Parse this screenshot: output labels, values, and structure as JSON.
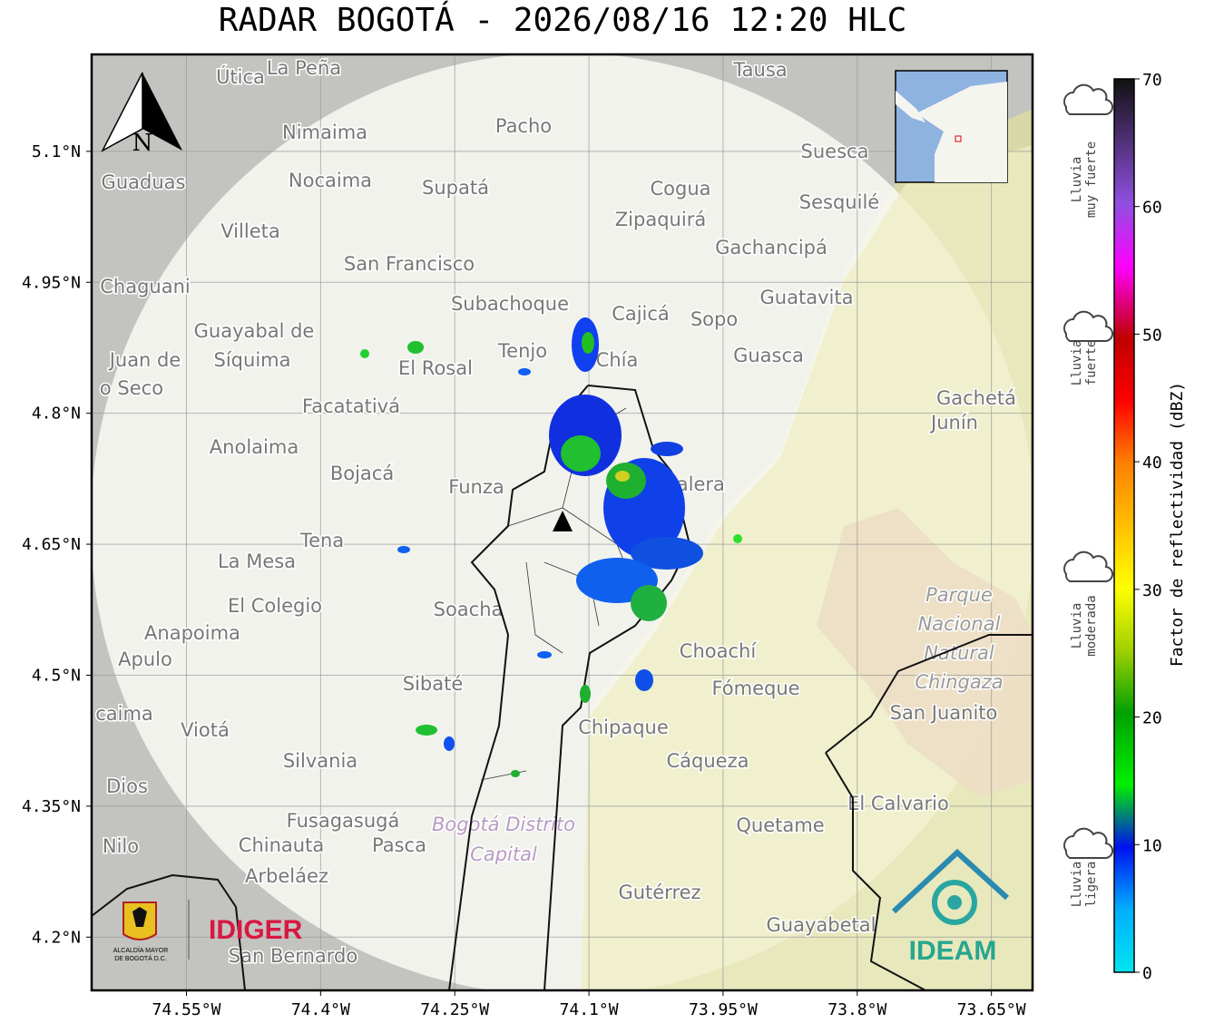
{
  "title": "RADAR BOGOTÁ - 2026/08/16 12:20 HLC",
  "map": {
    "xlim": [
      -74.656,
      -73.604
    ],
    "ylim": [
      4.139,
      5.211
    ],
    "xticks": [
      {
        "value": -74.55,
        "label": "74.55°W"
      },
      {
        "value": -74.4,
        "label": "74.4°W"
      },
      {
        "value": -74.25,
        "label": "74.25°W"
      },
      {
        "value": -74.1,
        "label": "74.1°W"
      },
      {
        "value": -73.95,
        "label": "73.95°W"
      },
      {
        "value": -73.8,
        "label": "73.8°W"
      },
      {
        "value": -73.65,
        "label": "73.65°W"
      }
    ],
    "yticks": [
      {
        "value": 5.1,
        "label": "5.1°N"
      },
      {
        "value": 4.95,
        "label": "4.95°N"
      },
      {
        "value": 4.8,
        "label": "4.8°N"
      },
      {
        "value": 4.65,
        "label": "4.65°N"
      },
      {
        "value": 4.5,
        "label": "4.5°N"
      },
      {
        "value": 4.35,
        "label": "4.35°N"
      },
      {
        "value": 4.2,
        "label": "4.2°N"
      }
    ],
    "grid": true,
    "north": "N",
    "places": [
      "Útica",
      "La Peña",
      "Tausa",
      "Pacho",
      "Nimaima",
      "Guaduas",
      "Nocaima",
      "Supatá",
      "Cogua",
      "Suesca",
      "Sesquilé",
      "Villeta",
      "Zipaquirá",
      "Gachancipá",
      "San Francisco",
      "Chaguani",
      "Subachoque",
      "Cajicá",
      "Sopo",
      "Guatavita",
      "Guayabal de",
      "Síquima",
      "Juan de",
      "o Seco",
      "Tenjo",
      "Chía",
      "El Rosal",
      "Guasca",
      "Facatativá",
      "Gachetá",
      "Junín",
      "Anolaima",
      "Bojacá",
      "Funza",
      "Calera",
      "Tena",
      "La Mesa",
      "El Colegio",
      "Soacha",
      "Anapoima",
      "Apulo",
      "Choachí",
      "Fómeque",
      "Sibaté",
      "caima",
      "Viotá",
      "Chipaque",
      "Silvania",
      "Cáqueza",
      "Dios",
      "El Calvario",
      "Fusagasugá",
      "Quetame",
      "Nilo",
      "Chinauta",
      "Pasca",
      "Arbeláez",
      "Gutérrez",
      "Guayabetal",
      "San Bernardo",
      "San Juanito"
    ],
    "park": [
      "Parque",
      "Nacional",
      "Natural",
      "Chingaza"
    ],
    "district": [
      "Bogotá Distrito",
      "Capital"
    ]
  },
  "colorbar": {
    "label": "Factor de reflectividad (dBZ)",
    "lim": [
      0,
      70
    ],
    "ticks": [
      0,
      10,
      20,
      30,
      40,
      50,
      60,
      70
    ],
    "categories": [
      [
        "Lluvia",
        "muy fuerte"
      ],
      [
        "Lluvia",
        "fuerte"
      ],
      [
        "Lluvia",
        "moderada"
      ],
      [
        "Lluvia",
        "ligera"
      ]
    ]
  },
  "logos": {
    "alcaldia": [
      "ALCALDÍA MAYOR",
      "DE BOGOTÁ D.C."
    ],
    "idiger": "IDIGER",
    "ideam": "IDEAM"
  }
}
